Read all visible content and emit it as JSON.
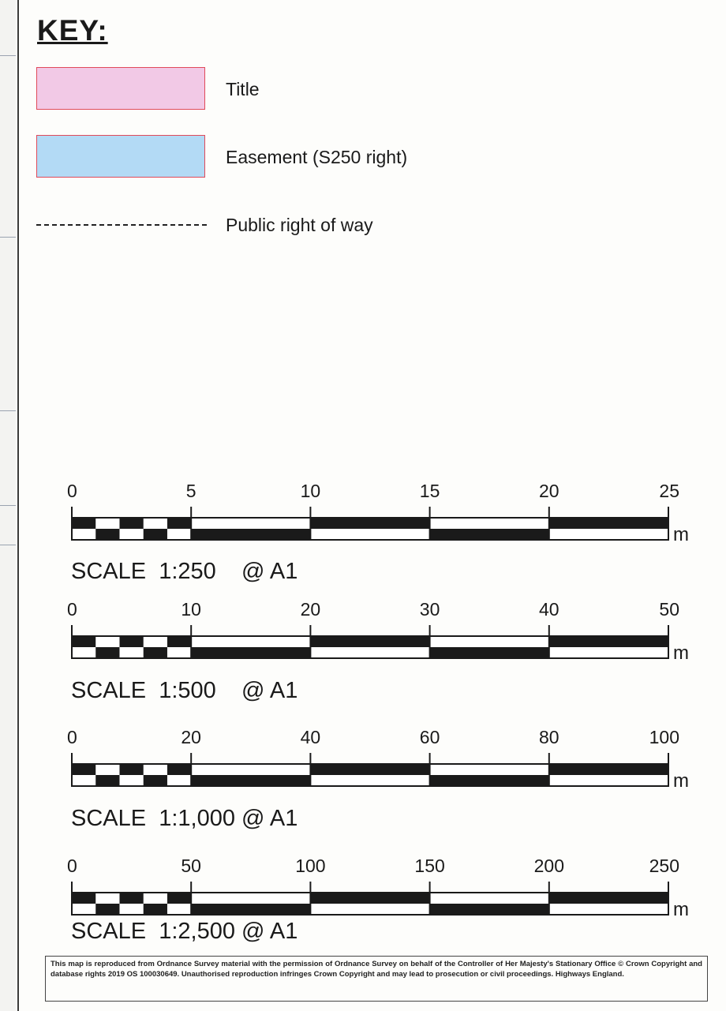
{
  "key": {
    "heading": "KEY:",
    "items": [
      {
        "label": "Title",
        "fill": "#f2c9e6",
        "border": "#e04a5a"
      },
      {
        "label": "Easement (S250 right)",
        "fill": "#b3daf5",
        "border": "#e04a5a"
      },
      {
        "label": "Public right of way",
        "style": "dashed"
      }
    ]
  },
  "scale_bars": [
    {
      "title": "SCALE  1:250    @ A1",
      "ticks": [
        "0",
        "5",
        "10",
        "15",
        "20",
        "25"
      ],
      "unit": "m"
    },
    {
      "title": "SCALE  1:500    @ A1",
      "ticks": [
        "0",
        "10",
        "20",
        "30",
        "40",
        "50"
      ],
      "unit": "m"
    },
    {
      "title": "SCALE  1:1,000 @ A1",
      "ticks": [
        "0",
        "20",
        "40",
        "60",
        "80",
        "100"
      ],
      "unit": "m"
    },
    {
      "title": "SCALE  1:2,500 @ A1",
      "ticks": [
        "0",
        "50",
        "100",
        "150",
        "200",
        "250"
      ],
      "unit": "m"
    }
  ],
  "notice": "This map is reproduced from Ordnance Survey material with the permission of Ordnance Survey on behalf of the Controller of Her Majesty's Stationary Office © Crown Copyright and database rights 2019   OS   100030649.   Unauthorised reproduction infringes Crown Copyright and may lead to prosecution or civil proceedings. Highways England."
}
